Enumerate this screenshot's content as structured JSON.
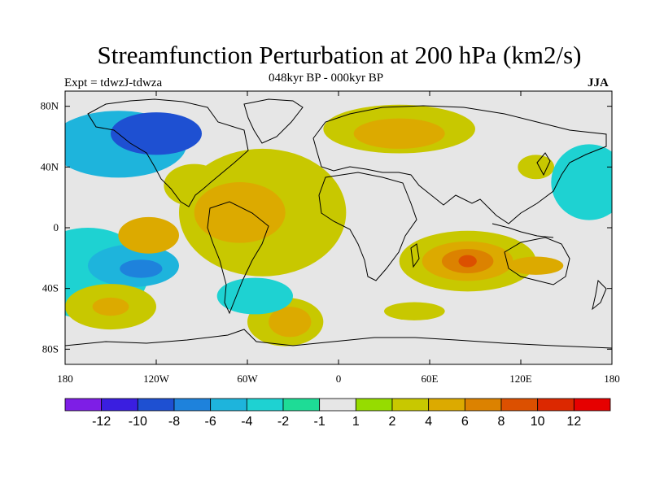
{
  "title": "Streamfunction Perturbation at 200 hPa (km2/s)",
  "subtitle_left": "Expt = tdwzJ-tdwza",
  "subtitle_center": "048kyr BP - 000kyr BP",
  "subtitle_right": "JJA",
  "map": {
    "lon_range": [
      -180,
      180
    ],
    "lat_range": [
      -90,
      90
    ],
    "background_color": "#e6e6e6",
    "lat_ticks": [
      {
        "lat": 80,
        "label": "80N"
      },
      {
        "lat": 40,
        "label": "40N"
      },
      {
        "lat": 0,
        "label": "0"
      },
      {
        "lat": -40,
        "label": "40S"
      },
      {
        "lat": -80,
        "label": "80S"
      }
    ],
    "lon_ticks": [
      {
        "lon": -180,
        "label": "180"
      },
      {
        "lon": -120,
        "label": "120W"
      },
      {
        "lon": -60,
        "label": "60W"
      },
      {
        "lon": 0,
        "label": "0"
      },
      {
        "lon": 60,
        "label": "60E"
      },
      {
        "lon": 120,
        "label": "120E"
      },
      {
        "lon": 180,
        "label": "180"
      }
    ]
  },
  "colorbar": {
    "colors": [
      "#7e1ee6",
      "#3a1ee0",
      "#1e50d2",
      "#1e82dc",
      "#1eb4dc",
      "#1ed2d2",
      "#1edc96",
      "#e6e6e6",
      "#96dc00",
      "#c8c800",
      "#dcaa00",
      "#dc8200",
      "#dc5000",
      "#dc2800",
      "#e60000"
    ],
    "labels": [
      "-12",
      "-10",
      "-8",
      "-6",
      "-4",
      "-2",
      "-1",
      "1",
      "2",
      "4",
      "6",
      "8",
      "10",
      "12"
    ]
  },
  "regions": [
    {
      "level": -4,
      "lon": -145,
      "lat": 55,
      "rx": 45,
      "ry": 22
    },
    {
      "level": -8,
      "lon": -120,
      "lat": 62,
      "rx": 30,
      "ry": 14
    },
    {
      "level": -2,
      "lon": -165,
      "lat": -30,
      "rx": 40,
      "ry": 30
    },
    {
      "level": -4,
      "lon": -135,
      "lat": -25,
      "rx": 30,
      "ry": 14
    },
    {
      "level": -6,
      "lon": -130,
      "lat": -27,
      "rx": 14,
      "ry": 6
    },
    {
      "level": 2,
      "lon": -95,
      "lat": 28,
      "rx": 20,
      "ry": 14
    },
    {
      "level": 2,
      "lon": -50,
      "lat": 10,
      "rx": 55,
      "ry": 42
    },
    {
      "level": 4,
      "lon": -65,
      "lat": 10,
      "rx": 30,
      "ry": 20
    },
    {
      "level": 4,
      "lon": -125,
      "lat": -5,
      "rx": 20,
      "ry": 12
    },
    {
      "level": 2,
      "lon": 40,
      "lat": 65,
      "rx": 50,
      "ry": 16
    },
    {
      "level": 4,
      "lon": 40,
      "lat": 62,
      "rx": 30,
      "ry": 10
    },
    {
      "level": 2,
      "lon": 85,
      "lat": -22,
      "rx": 45,
      "ry": 20
    },
    {
      "level": 4,
      "lon": 85,
      "lat": -22,
      "rx": 30,
      "ry": 13
    },
    {
      "level": 6,
      "lon": 85,
      "lat": -22,
      "rx": 17,
      "ry": 8
    },
    {
      "level": 8,
      "lon": 85,
      "lat": -22,
      "rx": 6,
      "ry": 4
    },
    {
      "level": 4,
      "lon": 130,
      "lat": -25,
      "rx": 18,
      "ry": 6
    },
    {
      "level": 2,
      "lon": -150,
      "lat": -52,
      "rx": 30,
      "ry": 15
    },
    {
      "level": 4,
      "lon": -150,
      "lat": -52,
      "rx": 12,
      "ry": 6
    },
    {
      "level": 2,
      "lon": -35,
      "lat": -62,
      "rx": 25,
      "ry": 16
    },
    {
      "level": 4,
      "lon": -32,
      "lat": -62,
      "rx": 14,
      "ry": 10
    },
    {
      "level": 2,
      "lon": 50,
      "lat": -55,
      "rx": 20,
      "ry": 6
    },
    {
      "level": 2,
      "lon": 130,
      "lat": 40,
      "rx": 12,
      "ry": 8
    },
    {
      "level": -2,
      "lon": 165,
      "lat": 30,
      "rx": 25,
      "ry": 25
    },
    {
      "level": -2,
      "lon": -55,
      "lat": -45,
      "rx": 25,
      "ry": 12
    }
  ]
}
